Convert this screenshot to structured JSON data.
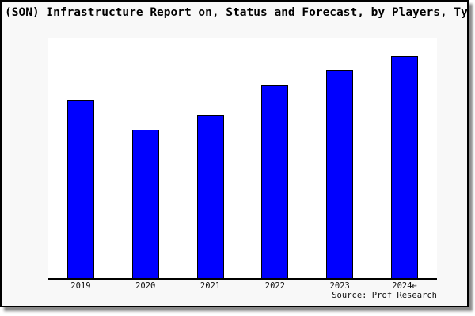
{
  "title": "(SON) Infrastructure Report on, Status and Forecast, by Players, Ty",
  "source_note": "Source: Prof Research",
  "colors": {
    "bar_fill": "#0000ff",
    "bar_border": "#000000",
    "card_background": "#f8f8f8",
    "plot_background": "#ffffff",
    "axis": "#000000",
    "shadow": "#8a8a8a"
  },
  "chart_data": {
    "type": "bar",
    "title": "(SON) Infrastructure Report on, Status and Forecast, by Players, Ty",
    "categories": [
      "2019",
      "2020",
      "2021",
      "2022",
      "2023",
      "2024e"
    ],
    "values": [
      74.0,
      61.8,
      67.8,
      80.3,
      86.5,
      92.4
    ],
    "values_note": "relative bar heights as % of plot area; chart shows no y-axis scale",
    "xlabel": "",
    "ylabel": "",
    "ylim": [
      0,
      100
    ],
    "grid": false,
    "legend": false,
    "bar_color": "#0000ff",
    "annotations": [
      "Source: Prof Research"
    ]
  }
}
